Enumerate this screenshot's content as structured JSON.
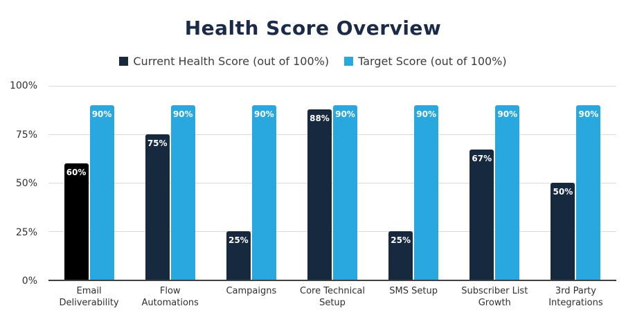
{
  "title": "Health Score Overview",
  "legend": [
    {
      "label": "Current Health Score (out of 100%)",
      "color": "#17293e"
    },
    {
      "label": "Target Score (out of 100%)",
      "color": "#29a8e0"
    }
  ],
  "chart_data": {
    "type": "bar",
    "title": "Health Score Overview",
    "categories": [
      "Email Deliverability",
      "Flow Automations",
      "Campaigns",
      "Core Technical Setup",
      "SMS Setup",
      "Subscriber List Growth",
      "3rd Party Integrations"
    ],
    "series": [
      {
        "name": "Current Health Score (out of 100%)",
        "values": [
          60,
          75,
          25,
          88,
          25,
          67,
          50
        ],
        "data_labels": [
          "60%",
          "75%",
          "25%",
          "88%",
          "25%",
          "67%",
          "50%"
        ],
        "color": "#17293e",
        "bar_colors": [
          "#000000",
          "#17293e",
          "#17293e",
          "#17293e",
          "#17293e",
          "#17293e",
          "#17293e"
        ]
      },
      {
        "name": "Target Score (out of 100%)",
        "values": [
          90,
          90,
          90,
          90,
          90,
          90,
          90
        ],
        "data_labels": [
          "90%",
          "90%",
          "90%",
          "90%",
          "90%",
          "90%",
          "90%"
        ],
        "color": "#29a8e0",
        "bar_colors": [
          "#29a8e0",
          "#29a8e0",
          "#29a8e0",
          "#29a8e0",
          "#29a8e0",
          "#29a8e0",
          "#29a8e0"
        ]
      }
    ],
    "xlabel": "",
    "ylabel": "",
    "ylim": [
      0,
      100
    ],
    "yticks": [
      {
        "label": "100%",
        "value": 100
      },
      {
        "label": "75%",
        "value": 75
      },
      {
        "label": "50%",
        "value": 50
      },
      {
        "label": "25%",
        "value": 25
      },
      {
        "label": "0%",
        "value": 0
      }
    ],
    "grid": true,
    "legend_position": "top"
  },
  "colors": {
    "title_text": "#1a2b4a",
    "axis_text": "#2f2f2f",
    "gridline": "#d9d9d9",
    "axis_line": "#3f3f3f",
    "background": "#ffffff",
    "bar_value_text": "#ffffff"
  }
}
